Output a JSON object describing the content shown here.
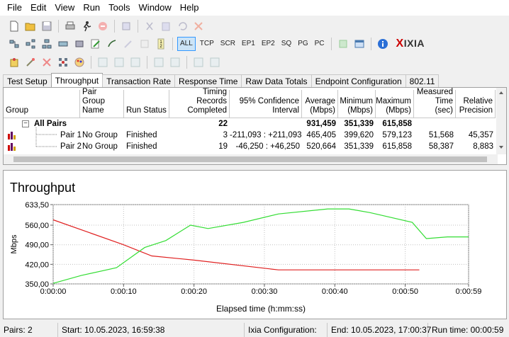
{
  "menu": [
    "File",
    "Edit",
    "View",
    "Run",
    "Tools",
    "Window",
    "Help"
  ],
  "toolbar": {
    "modes": [
      "ALL",
      "TCP",
      "SCR",
      "EP1",
      "EP2",
      "SQ",
      "PG",
      "PC"
    ],
    "brand": "XIXIA"
  },
  "tabs": [
    "Test Setup",
    "Throughput",
    "Transaction Rate",
    "Response Time",
    "Raw Data Totals",
    "Endpoint Configuration",
    "802.11"
  ],
  "grid": {
    "headers": {
      "group": "Group",
      "pair_group_name": "Pair Group Name",
      "run_status": "Run Status",
      "timing_records": "Timing Records Completed",
      "confidence": "95% Confidence Interval",
      "average": "Average (Mbps)",
      "minimum": "Minimum (Mbps)",
      "maximum": "Maximum (Mbps)",
      "measured_time": "Measured Time (sec)",
      "relative_precision": "Relative Precision"
    },
    "all_pairs": {
      "expander": "−",
      "label": "All Pairs",
      "timing_records": "22",
      "average": "931,459",
      "minimum": "351,339",
      "maximum": "615,858"
    },
    "rows": [
      {
        "pair": "Pair 1",
        "group_name": "No Group",
        "status": "Finished",
        "timing_records": "3",
        "confidence": "-211,093 : +211,093",
        "average": "465,405",
        "minimum": "399,620",
        "maximum": "579,123",
        "measured_time": "51,568",
        "precision": "45,357"
      },
      {
        "pair": "Pair 2",
        "group_name": "No Group",
        "status": "Finished",
        "timing_records": "19",
        "confidence": "-46,250 : +46,250",
        "average": "520,664",
        "minimum": "351,339",
        "maximum": "615,858",
        "measured_time": "58,387",
        "precision": "8,883"
      }
    ]
  },
  "chart_data": {
    "type": "line",
    "title": "Throughput",
    "xlabel": "Elapsed time (h:mm:ss)",
    "ylabel": "Mbps",
    "ylim": [
      350,
      633.5
    ],
    "yticks": [
      "350,00",
      "420,00",
      "490,00",
      "560,00",
      "633,50"
    ],
    "ytick_values": [
      350,
      420,
      490,
      560,
      633.5
    ],
    "xticks": [
      "0:00:00",
      "0:00:10",
      "0:00:20",
      "0:00:30",
      "0:00:40",
      "0:00:50",
      "0:00:59"
    ],
    "xtick_values": [
      0,
      10,
      20,
      30,
      40,
      50,
      59
    ],
    "xlim": [
      0,
      59
    ],
    "grid": true,
    "series": [
      {
        "color": "#e02020",
        "x": [
          0,
          10,
          14,
          20,
          32,
          40,
          45,
          52
        ],
        "y": [
          579,
          490,
          450,
          435,
          400,
          400,
          400,
          400
        ]
      },
      {
        "color": "#33dd33",
        "x": [
          0,
          4,
          9,
          13,
          16,
          19.5,
          22,
          27,
          32,
          39,
          42,
          45,
          51,
          53,
          56,
          59
        ],
        "y": [
          352,
          380,
          408,
          480,
          505,
          560,
          548,
          570,
          600,
          618,
          618,
          605,
          570,
          512,
          518,
          518
        ]
      }
    ]
  },
  "status": {
    "pairs": "Pairs: 2",
    "start": "Start: 10.05.2023, 16:59:38",
    "ixia_config": "Ixia Configuration:",
    "end": "End: 10.05.2023, 17:00:37",
    "run_time": "Run time: 00:00:59"
  }
}
